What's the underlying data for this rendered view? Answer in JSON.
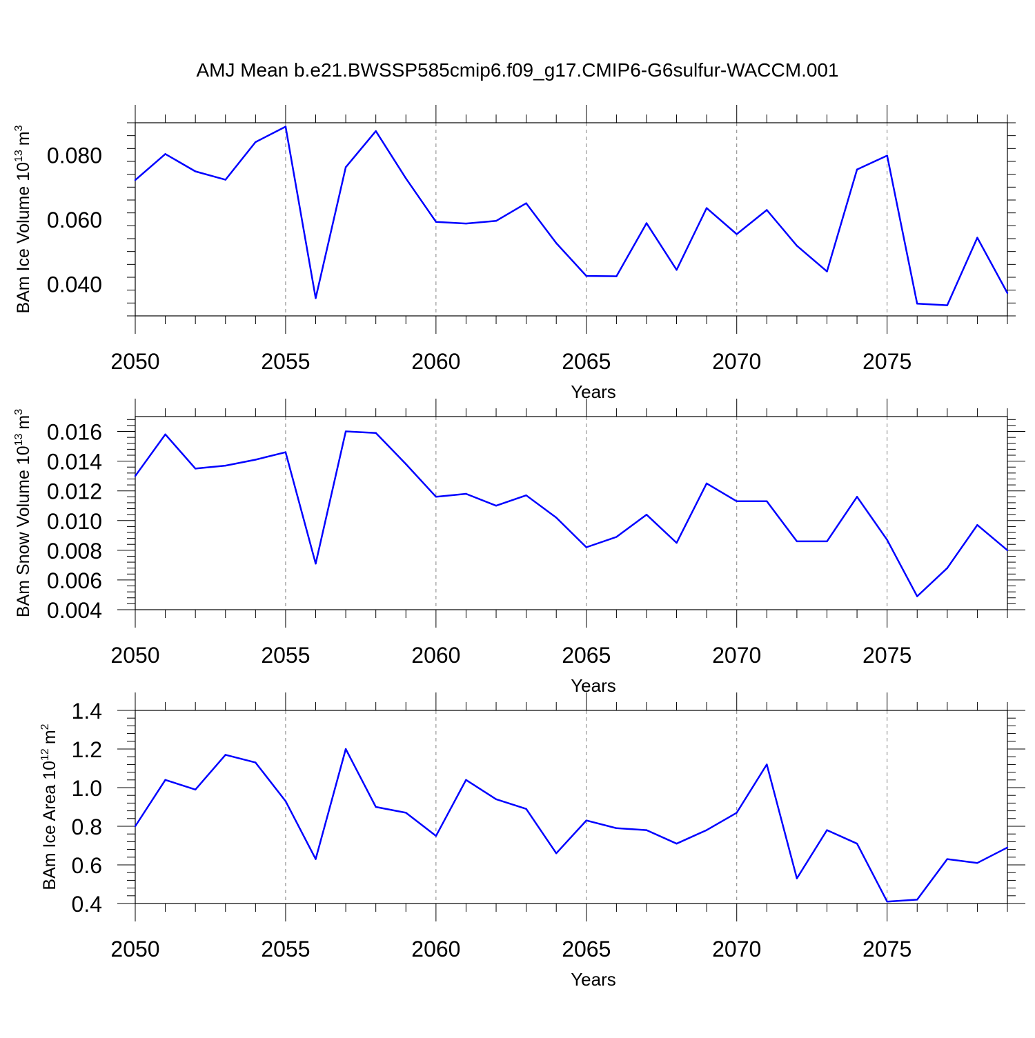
{
  "figure": {
    "title": "AMJ Mean b.e21.BWSSP585cmip6.f09_g17.CMIP6-G6sulfur-WACCM.001",
    "line_color": "#0000ff"
  },
  "chart_data": [
    {
      "type": "line",
      "title": "AMJ Mean b.e21.BWSSP585cmip6.f09_g17.CMIP6-G6sulfur-WACCM.001",
      "ylabel_main": "BAm Ice Volume 10",
      "ylabel_exp": "13",
      "ylabel_unit": "m",
      "ylabel_unit_exp": "3",
      "xlabel": "Years",
      "xlim": [
        2050,
        2079
      ],
      "ylim": [
        0.03,
        0.09
      ],
      "yticks": [
        0.04,
        0.06,
        0.08
      ],
      "ytick_labels": [
        "0.040",
        "0.060",
        "0.080"
      ],
      "xticks": [
        2050,
        2055,
        2060,
        2065,
        2070,
        2075
      ],
      "xtick_labels": [
        "2050",
        "2055",
        "2060",
        "2065",
        "2070",
        "2075"
      ],
      "x": [
        2050,
        2051,
        2052,
        2053,
        2054,
        2055,
        2056,
        2057,
        2058,
        2059,
        2060,
        2061,
        2062,
        2063,
        2064,
        2065,
        2066,
        2067,
        2068,
        2069,
        2070,
        2071,
        2072,
        2073,
        2074,
        2075,
        2076,
        2077,
        2078,
        2079
      ],
      "series": [
        {
          "name": "BAm Ice Volume",
          "values": [
            0.0722,
            0.0803,
            0.0749,
            0.0723,
            0.084,
            0.0888,
            0.0355,
            0.0762,
            0.0874,
            0.0727,
            0.0592,
            0.0587,
            0.0595,
            0.065,
            0.0526,
            0.0424,
            0.0423,
            0.0588,
            0.0443,
            0.0635,
            0.0554,
            0.0629,
            0.0518,
            0.0438,
            0.0755,
            0.0798,
            0.0338,
            0.0333,
            0.0543,
            0.0371
          ]
        }
      ]
    },
    {
      "type": "line",
      "ylabel_main": "BAm Snow Volume 10",
      "ylabel_exp": "13",
      "ylabel_unit": "m",
      "ylabel_unit_exp": "3",
      "xlabel": "Years",
      "xlim": [
        2050,
        2079
      ],
      "ylim": [
        0.004,
        0.017
      ],
      "yticks": [
        0.004,
        0.006,
        0.008,
        0.01,
        0.012,
        0.014,
        0.016
      ],
      "ytick_labels": [
        "0.004",
        "0.006",
        "0.008",
        "0.010",
        "0.012",
        "0.014",
        "0.016"
      ],
      "xticks": [
        2050,
        2055,
        2060,
        2065,
        2070,
        2075
      ],
      "xtick_labels": [
        "2050",
        "2055",
        "2060",
        "2065",
        "2070",
        "2075"
      ],
      "x": [
        2050,
        2051,
        2052,
        2053,
        2054,
        2055,
        2056,
        2057,
        2058,
        2059,
        2060,
        2061,
        2062,
        2063,
        2064,
        2065,
        2066,
        2067,
        2068,
        2069,
        2070,
        2071,
        2072,
        2073,
        2074,
        2075,
        2076,
        2077,
        2078,
        2079
      ],
      "series": [
        {
          "name": "BAm Snow Volume",
          "values": [
            0.013,
            0.0158,
            0.0135,
            0.0137,
            0.0141,
            0.0146,
            0.0071,
            0.016,
            0.0159,
            0.0138,
            0.0116,
            0.0118,
            0.011,
            0.0117,
            0.0102,
            0.0082,
            0.0089,
            0.0104,
            0.0085,
            0.0125,
            0.0113,
            0.0113,
            0.0086,
            0.0086,
            0.0116,
            0.0087,
            0.0049,
            0.0068,
            0.0097,
            0.008
          ]
        }
      ]
    },
    {
      "type": "line",
      "ylabel_main": "BAm Ice Area 10",
      "ylabel_exp": "12",
      "ylabel_unit": "m",
      "ylabel_unit_exp": "2",
      "xlabel": "Years",
      "xlim": [
        2050,
        2079
      ],
      "ylim": [
        0.4,
        1.4
      ],
      "yticks": [
        0.4,
        0.6,
        0.8,
        1.0,
        1.2,
        1.4
      ],
      "ytick_labels": [
        "0.4",
        "0.6",
        "0.8",
        "1.0",
        "1.2",
        "1.4"
      ],
      "xticks": [
        2050,
        2055,
        2060,
        2065,
        2070,
        2075
      ],
      "xtick_labels": [
        "2050",
        "2055",
        "2060",
        "2065",
        "2070",
        "2075"
      ],
      "x": [
        2050,
        2051,
        2052,
        2053,
        2054,
        2055,
        2056,
        2057,
        2058,
        2059,
        2060,
        2061,
        2062,
        2063,
        2064,
        2065,
        2066,
        2067,
        2068,
        2069,
        2070,
        2071,
        2072,
        2073,
        2074,
        2075,
        2076,
        2077,
        2078,
        2079
      ],
      "series": [
        {
          "name": "BAm Ice Area",
          "values": [
            0.8,
            1.04,
            0.99,
            1.17,
            1.13,
            0.93,
            0.63,
            1.2,
            0.9,
            0.87,
            0.75,
            1.04,
            0.94,
            0.89,
            0.66,
            0.83,
            0.79,
            0.78,
            0.71,
            0.78,
            0.87,
            1.12,
            0.53,
            0.78,
            0.71,
            0.41,
            0.42,
            0.63,
            0.61,
            0.69
          ]
        }
      ]
    }
  ]
}
